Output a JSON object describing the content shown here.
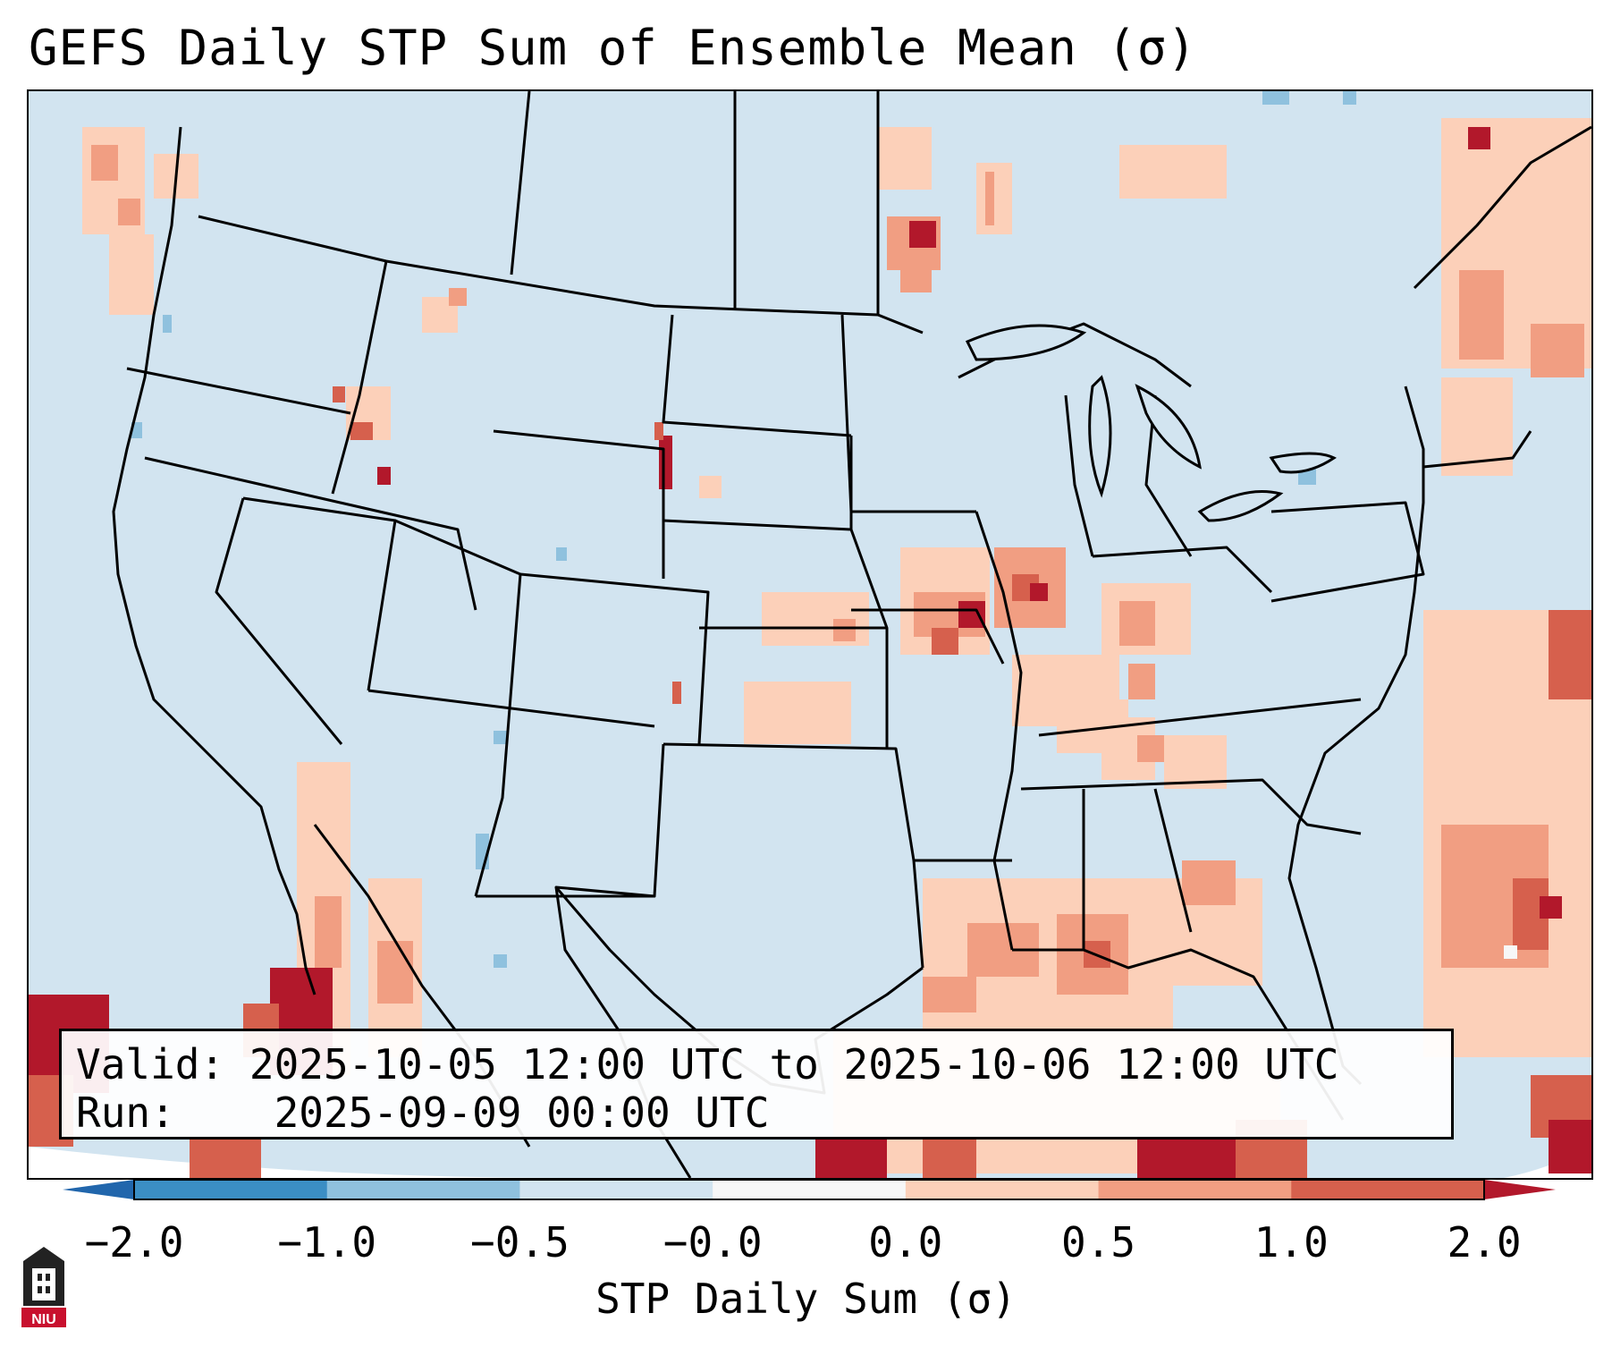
{
  "title": "GEFS Daily STP Sum of Ensemble Mean (σ)",
  "info": {
    "valid_label": "Valid:",
    "valid_value": "2025-10-05 12:00 UTC to 2025-10-06 12:00 UTC",
    "run_label": "Run:",
    "run_value": "2025-09-09 00:00 UTC"
  },
  "colorbar": {
    "label": "STP Daily Sum (σ)",
    "ticks": [
      "−2.0",
      "−1.0",
      "−0.5",
      "−0.0",
      "0.0",
      "0.5",
      "1.0",
      "2.0"
    ],
    "colors": [
      "#3b8ec4",
      "#8fc1de",
      "#d2e4f0",
      "#f7f7f7",
      "#fcd0b9",
      "#f19e82",
      "#d6604d"
    ],
    "under_color": "#2166ac",
    "over_color": "#b2182b"
  },
  "map": {
    "background_color": "#d2e4f0",
    "states_color": "#000000"
  },
  "logo": {
    "text": "NIU"
  }
}
